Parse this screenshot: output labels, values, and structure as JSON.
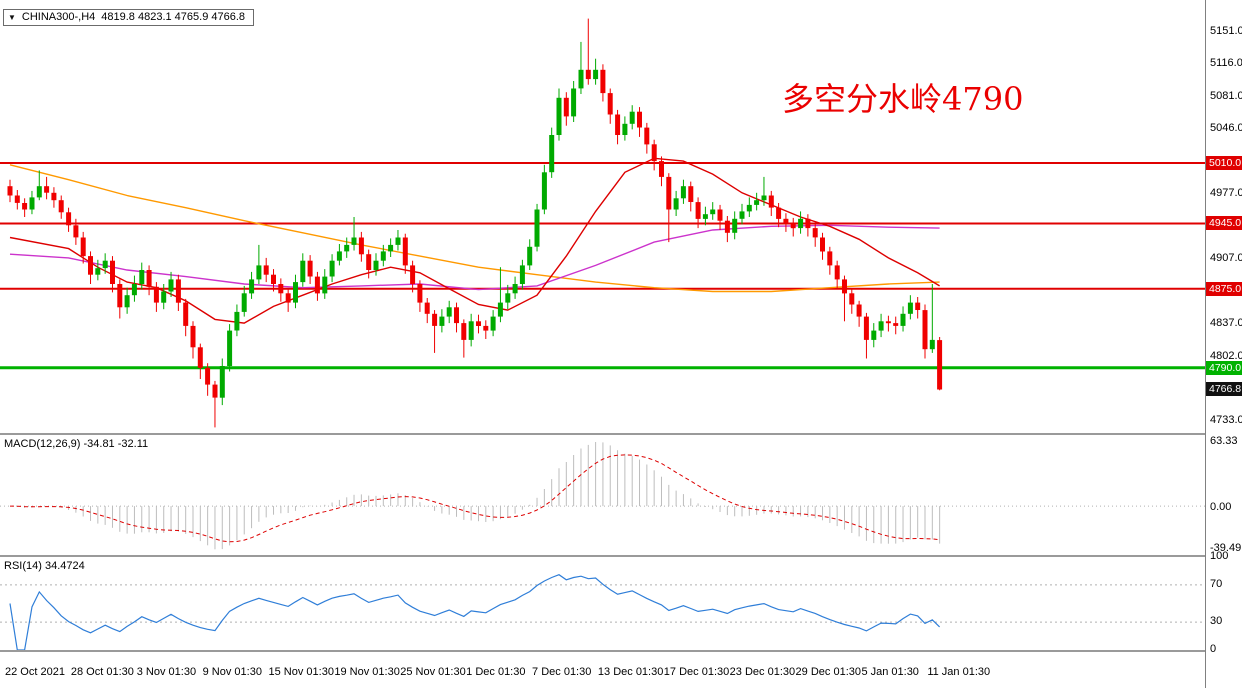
{
  "window": {
    "title_symbol": "CHINA300-,H4",
    "title_ohlc": "4819.8 4823.1 4765.9 4766.8"
  },
  "annotation": {
    "text": "多空分水岭4790",
    "color": "#ea0000"
  },
  "indicators": {
    "macd": {
      "label": "MACD(12,26,9)",
      "value1": "-34.81",
      "value2": "-32.11",
      "axis_labels": [
        "63.33",
        "0.00",
        "-39.49"
      ],
      "axis_values": [
        63.33,
        0,
        -39.49
      ],
      "ylim": [
        -45,
        70
      ],
      "params": [
        12,
        26,
        9
      ]
    },
    "rsi": {
      "label": "RSI(14)",
      "value": "34.4724",
      "axis_labels": [
        "100",
        "70",
        "30",
        "0"
      ],
      "axis_values": [
        100,
        70,
        30,
        0
      ],
      "levels": [
        70,
        30
      ],
      "ylim": [
        0,
        100
      ],
      "period": 14
    }
  },
  "colors": {
    "bull": "#00aa00",
    "bear": "#f00000",
    "ma_red": "#dd0000",
    "ma_orange": "#ff9900",
    "ma_magenta": "#cc33cc",
    "macd_hist": "#bdbdbd",
    "macd_signal": "#dd0000",
    "rsi_line": "#2f7ed8",
    "grid": "#b0b0b0",
    "badge_current_bg": "#111111"
  },
  "chart_data": {
    "type": "candlestick",
    "symbol": "CHINA300-",
    "timeframe": "H4",
    "ylim": [
      4720,
      5185
    ],
    "current_price": 4766.8,
    "price_ticks": [
      5151.0,
      5116.0,
      5081.0,
      5046.0,
      4977.0,
      4907.0,
      4837.0,
      4802.0,
      4733.0
    ],
    "hlines": [
      {
        "price": 5010.0,
        "label": "5010.0",
        "color": "#e00000",
        "width": 2
      },
      {
        "price": 4945.0,
        "label": "4945.0",
        "color": "#e00000",
        "width": 2
      },
      {
        "price": 4875.0,
        "label": "4875.0",
        "color": "#e00000",
        "width": 2
      },
      {
        "price": 4790.0,
        "label": "4790.0",
        "color": "#00b200",
        "width": 3
      }
    ],
    "x_labels": [
      {
        "text": "22 Oct 2021",
        "i": 0
      },
      {
        "text": "28 Oct 01:30",
        "i": 9
      },
      {
        "text": "3 Nov 01:30",
        "i": 18
      },
      {
        "text": "9 Nov 01:30",
        "i": 27
      },
      {
        "text": "15 Nov 01:30",
        "i": 36
      },
      {
        "text": "19 Nov 01:30",
        "i": 45
      },
      {
        "text": "25 Nov 01:30",
        "i": 54
      },
      {
        "text": "1 Dec 01:30",
        "i": 63
      },
      {
        "text": "7 Dec 01:30",
        "i": 72
      },
      {
        "text": "13 Dec 01:30",
        "i": 81
      },
      {
        "text": "17 Dec 01:30",
        "i": 90
      },
      {
        "text": "23 Dec 01:30",
        "i": 99
      },
      {
        "text": "29 Dec 01:30",
        "i": 108
      },
      {
        "text": "5 Jan 01:30",
        "i": 117
      },
      {
        "text": "11 Jan 01:30",
        "i": 126
      }
    ],
    "moving_averages": [
      {
        "name": "ma-slow-orange",
        "color": "#ff9900",
        "points": [
          [
            0,
            5008
          ],
          [
            8,
            4992
          ],
          [
            16,
            4975
          ],
          [
            24,
            4962
          ],
          [
            32,
            4948
          ],
          [
            40,
            4935
          ],
          [
            48,
            4922
          ],
          [
            56,
            4910
          ],
          [
            64,
            4898
          ],
          [
            72,
            4890
          ],
          [
            80,
            4882
          ],
          [
            88,
            4876
          ],
          [
            96,
            4872
          ],
          [
            104,
            4872
          ],
          [
            112,
            4876
          ],
          [
            120,
            4880
          ],
          [
            127,
            4882
          ]
        ]
      },
      {
        "name": "ma-mid-magenta",
        "color": "#cc33cc",
        "points": [
          [
            0,
            4912
          ],
          [
            8,
            4908
          ],
          [
            16,
            4895
          ],
          [
            24,
            4888
          ],
          [
            32,
            4880
          ],
          [
            40,
            4876
          ],
          [
            48,
            4878
          ],
          [
            56,
            4880
          ],
          [
            64,
            4874
          ],
          [
            72,
            4878
          ],
          [
            80,
            4900
          ],
          [
            88,
            4925
          ],
          [
            96,
            4938
          ],
          [
            104,
            4942
          ],
          [
            112,
            4943
          ],
          [
            120,
            4941
          ],
          [
            127,
            4940
          ]
        ]
      },
      {
        "name": "ma-fast-red",
        "color": "#dd0000",
        "points": [
          [
            0,
            4930
          ],
          [
            8,
            4918
          ],
          [
            12,
            4898
          ],
          [
            16,
            4882
          ],
          [
            20,
            4876
          ],
          [
            24,
            4862
          ],
          [
            28,
            4842
          ],
          [
            32,
            4838
          ],
          [
            36,
            4856
          ],
          [
            40,
            4868
          ],
          [
            44,
            4880
          ],
          [
            48,
            4890
          ],
          [
            52,
            4898
          ],
          [
            56,
            4892
          ],
          [
            60,
            4875
          ],
          [
            64,
            4858
          ],
          [
            68,
            4852
          ],
          [
            72,
            4868
          ],
          [
            76,
            4910
          ],
          [
            80,
            4958
          ],
          [
            84,
            5000
          ],
          [
            88,
            5015
          ],
          [
            92,
            5012
          ],
          [
            96,
            4998
          ],
          [
            100,
            4978
          ],
          [
            104,
            4965
          ],
          [
            108,
            4952
          ],
          [
            112,
            4942
          ],
          [
            116,
            4928
          ],
          [
            120,
            4908
          ],
          [
            124,
            4892
          ],
          [
            127,
            4878
          ]
        ]
      }
    ],
    "candles": [
      [
        4985,
        4992,
        4968,
        4975
      ],
      [
        4975,
        4981,
        4960,
        4967
      ],
      [
        4967,
        4972,
        4952,
        4960
      ],
      [
        4960,
        4980,
        4955,
        4973
      ],
      [
        4973,
        5002,
        4970,
        4985
      ],
      [
        4985,
        4995,
        4971,
        4978
      ],
      [
        4978,
        4984,
        4962,
        4970
      ],
      [
        4970,
        4975,
        4950,
        4957
      ],
      [
        4957,
        4962,
        4936,
        4943
      ],
      [
        4943,
        4950,
        4922,
        4930
      ],
      [
        4930,
        4936,
        4902,
        4910
      ],
      [
        4910,
        4915,
        4880,
        4890
      ],
      [
        4890,
        4906,
        4884,
        4897
      ],
      [
        4897,
        4913,
        4891,
        4905
      ],
      [
        4905,
        4910,
        4871,
        4880
      ],
      [
        4880,
        4885,
        4843,
        4855
      ],
      [
        4855,
        4876,
        4848,
        4868
      ],
      [
        4868,
        4889,
        4861,
        4880
      ],
      [
        4880,
        4903,
        4874,
        4895
      ],
      [
        4895,
        4900,
        4868,
        4877
      ],
      [
        4877,
        4882,
        4850,
        4860
      ],
      [
        4860,
        4880,
        4853,
        4872
      ],
      [
        4872,
        4893,
        4866,
        4885
      ],
      [
        4885,
        4890,
        4851,
        4860
      ],
      [
        4860,
        4864,
        4824,
        4835
      ],
      [
        4835,
        4840,
        4800,
        4812
      ],
      [
        4812,
        4816,
        4778,
        4790
      ],
      [
        4790,
        4795,
        4760,
        4772
      ],
      [
        4772,
        4776,
        4726,
        4758
      ],
      [
        4758,
        4800,
        4750,
        4792
      ],
      [
        4792,
        4837,
        4786,
        4830
      ],
      [
        4830,
        4858,
        4824,
        4850
      ],
      [
        4850,
        4878,
        4845,
        4870
      ],
      [
        4870,
        4893,
        4864,
        4885
      ],
      [
        4885,
        4922,
        4880,
        4900
      ],
      [
        4900,
        4908,
        4882,
        4890
      ],
      [
        4890,
        4896,
        4872,
        4880
      ],
      [
        4880,
        4886,
        4861,
        4870
      ],
      [
        4870,
        4875,
        4850,
        4860
      ],
      [
        4860,
        4890,
        4854,
        4882
      ],
      [
        4882,
        4913,
        4877,
        4905
      ],
      [
        4905,
        4911,
        4880,
        4888
      ],
      [
        4888,
        4893,
        4862,
        4870
      ],
      [
        4870,
        4896,
        4864,
        4888
      ],
      [
        4888,
        4912,
        4882,
        4905
      ],
      [
        4905,
        4923,
        4900,
        4915
      ],
      [
        4915,
        4930,
        4908,
        4922
      ],
      [
        4922,
        4952,
        4916,
        4930
      ],
      [
        4930,
        4936,
        4904,
        4912
      ],
      [
        4912,
        4917,
        4886,
        4895
      ],
      [
        4895,
        4913,
        4889,
        4905
      ],
      [
        4905,
        4922,
        4899,
        4915
      ],
      [
        4915,
        4929,
        4909,
        4922
      ],
      [
        4922,
        4938,
        4916,
        4930
      ],
      [
        4930,
        4934,
        4891,
        4900
      ],
      [
        4900,
        4905,
        4871,
        4880
      ],
      [
        4880,
        4884,
        4850,
        4860
      ],
      [
        4860,
        4865,
        4838,
        4848
      ],
      [
        4848,
        4852,
        4806,
        4835
      ],
      [
        4835,
        4853,
        4828,
        4845
      ],
      [
        4845,
        4862,
        4838,
        4855
      ],
      [
        4855,
        4860,
        4828,
        4838
      ],
      [
        4838,
        4842,
        4801,
        4820
      ],
      [
        4820,
        4848,
        4813,
        4840
      ],
      [
        4840,
        4847,
        4827,
        4835
      ],
      [
        4835,
        4841,
        4821,
        4830
      ],
      [
        4830,
        4852,
        4824,
        4845
      ],
      [
        4845,
        4898,
        4839,
        4860
      ],
      [
        4860,
        4879,
        4853,
        4870
      ],
      [
        4870,
        4888,
        4864,
        4880
      ],
      [
        4880,
        4906,
        4874,
        4900
      ],
      [
        4900,
        4928,
        4895,
        4920
      ],
      [
        4920,
        4966,
        4915,
        4960
      ],
      [
        4960,
        5008,
        4955,
        5000
      ],
      [
        5000,
        5048,
        4994,
        5040
      ],
      [
        5040,
        5090,
        5034,
        5080
      ],
      [
        5080,
        5086,
        5050,
        5060
      ],
      [
        5060,
        5098,
        5054,
        5090
      ],
      [
        5090,
        5140,
        5084,
        5110
      ],
      [
        5110,
        5165,
        5094,
        5100
      ],
      [
        5100,
        5122,
        5094,
        5110
      ],
      [
        5110,
        5116,
        5076,
        5085
      ],
      [
        5085,
        5090,
        5052,
        5062
      ],
      [
        5062,
        5067,
        5030,
        5040
      ],
      [
        5040,
        5060,
        5034,
        5052
      ],
      [
        5052,
        5072,
        5046,
        5065
      ],
      [
        5065,
        5070,
        5038,
        5048
      ],
      [
        5048,
        5053,
        5020,
        5030
      ],
      [
        5030,
        5035,
        5002,
        5012
      ],
      [
        5012,
        5017,
        4985,
        4995
      ],
      [
        4995,
        4999,
        4925,
        4960
      ],
      [
        4960,
        4980,
        4953,
        4972
      ],
      [
        4972,
        4992,
        4966,
        4985
      ],
      [
        4985,
        4990,
        4958,
        4968
      ],
      [
        4968,
        4973,
        4940,
        4950
      ],
      [
        4950,
        4963,
        4943,
        4955
      ],
      [
        4955,
        4968,
        4949,
        4960
      ],
      [
        4960,
        4965,
        4938,
        4948
      ],
      [
        4948,
        4953,
        4925,
        4935
      ],
      [
        4935,
        4958,
        4928,
        4950
      ],
      [
        4950,
        4966,
        4944,
        4958
      ],
      [
        4958,
        4973,
        4952,
        4965
      ],
      [
        4965,
        4978,
        4959,
        4970
      ],
      [
        4970,
        4995,
        4964,
        4975
      ],
      [
        4975,
        4980,
        4953,
        4962
      ],
      [
        4962,
        4967,
        4941,
        4950
      ],
      [
        4950,
        4956,
        4936,
        4945
      ],
      [
        4945,
        4951,
        4931,
        4940
      ],
      [
        4940,
        4958,
        4934,
        4950
      ],
      [
        4950,
        4955,
        4931,
        4940
      ],
      [
        4940,
        4945,
        4920,
        4930
      ],
      [
        4930,
        4935,
        4906,
        4915
      ],
      [
        4915,
        4920,
        4890,
        4900
      ],
      [
        4900,
        4905,
        4875,
        4885
      ],
      [
        4885,
        4889,
        4840,
        4870
      ],
      [
        4870,
        4875,
        4848,
        4858
      ],
      [
        4858,
        4862,
        4834,
        4845
      ],
      [
        4845,
        4849,
        4800,
        4820
      ],
      [
        4820,
        4838,
        4812,
        4830
      ],
      [
        4830,
        4848,
        4823,
        4840
      ],
      [
        4840,
        4846,
        4829,
        4838
      ],
      [
        4838,
        4845,
        4826,
        4835
      ],
      [
        4835,
        4856,
        4829,
        4848
      ],
      [
        4848,
        4868,
        4842,
        4860
      ],
      [
        4860,
        4866,
        4843,
        4852
      ],
      [
        4852,
        4858,
        4800,
        4810
      ],
      [
        4810,
        4880,
        4806,
        4820
      ],
      [
        4819.8,
        4823.1,
        4765.9,
        4766.8
      ]
    ]
  }
}
